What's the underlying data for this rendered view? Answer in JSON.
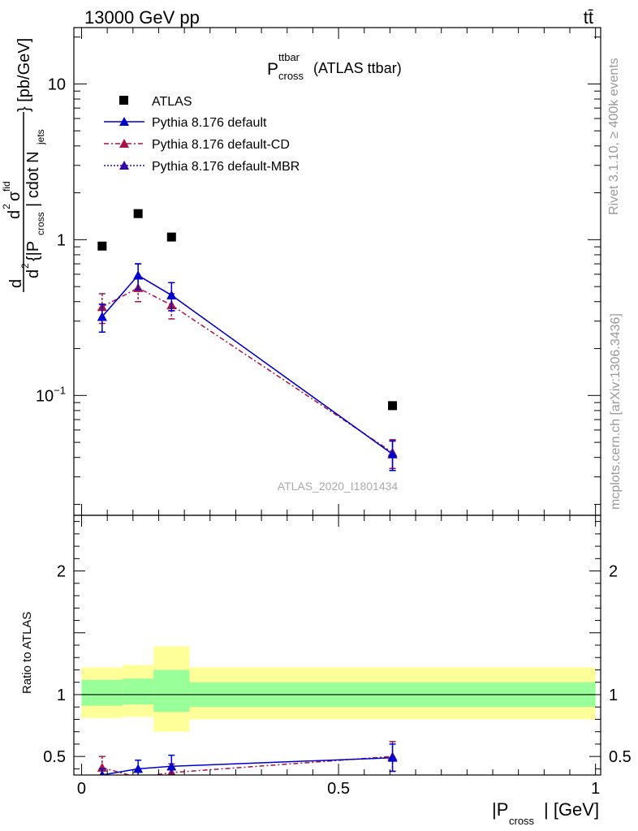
{
  "header": {
    "energy": "13000 GeV pp",
    "process": "tt̄"
  },
  "title": {
    "main": "P",
    "sup": "ttbar",
    "sub": "cross",
    "suffix": "(ATLAS ttbar)"
  },
  "side": {
    "rivet": "Rivet 3.1.10, ≥ 400k events",
    "mcplots": "mcplots.cern.ch [arXiv:1306.3436]"
  },
  "watermark": "ATLAS_2020_I1801434",
  "legend": {
    "placement": "top-left",
    "entries": [
      "ATLAS",
      "Pythia 8.176 default",
      "Pythia 8.176 default-CD",
      "Pythia 8.176 default-MBR"
    ]
  },
  "colors": {
    "data": "#000000",
    "default": "#0000cc",
    "cd": "#aa1144",
    "mbr": "#3300aa",
    "band_inner": "#99ff99",
    "band_outer": "#ffff99"
  },
  "chart_data": {
    "type": "scatter",
    "main": {
      "ylabel": {
        "prefix": "d",
        "num": "d",
        "num_sup": "2",
        "sigma_sup": "fid",
        "den_pre": "d",
        "den_sup": "2",
        "den_mid": "{|P",
        "den_sub": "cross",
        "den_post": "| cdot N",
        "den_sub2": "jets",
        "suffix": "} [pb/GeV]"
      },
      "yscale": "log",
      "ylim": [
        0.017,
        23
      ],
      "yticks": [
        {
          "value": 0.1,
          "base": "10",
          "exp": "−1"
        },
        {
          "value": 1,
          "base": "1",
          "exp": ""
        },
        {
          "value": 10,
          "base": "10",
          "exp": ""
        }
      ],
      "series": [
        {
          "name": "ATLAS",
          "x": [
            0.04,
            0.11,
            0.175,
            0.605
          ],
          "y": [
            0.91,
            1.47,
            1.04,
            0.086
          ]
        },
        {
          "name": "Pythia 8.176 default",
          "x": [
            0.04,
            0.11,
            0.175,
            0.605
          ],
          "y": [
            0.32,
            0.59,
            0.44,
            0.042
          ],
          "err": [
            0.065,
            0.11,
            0.09,
            0.009
          ]
        },
        {
          "name": "Pythia 8.176 default-CD",
          "x": [
            0.04,
            0.11,
            0.175,
            0.605
          ],
          "y": [
            0.37,
            0.49,
            0.38,
            0.043
          ],
          "err": [
            0.08,
            0.09,
            0.07,
            0.009
          ]
        },
        {
          "name": "Pythia 8.176 default-MBR",
          "x": [
            0.04,
            0.11,
            0.175,
            0.605
          ],
          "y": [
            0.32,
            0.59,
            0.44,
            0.042
          ],
          "err": [
            0.065,
            0.11,
            0.09,
            0.009
          ]
        }
      ]
    },
    "ratio": {
      "ylabel": "Ratio to ATLAS",
      "ylim": [
        0.35,
        2.45
      ],
      "yticks": [
        {
          "value": 0.5,
          "label": "0.5"
        },
        {
          "value": 1,
          "label": "1"
        },
        {
          "value": 2,
          "label": "2"
        }
      ],
      "bands": [
        {
          "x0": 0.0,
          "x1": 0.08,
          "inner": [
            0.91,
            1.12
          ],
          "outer": [
            0.81,
            1.22
          ]
        },
        {
          "x0": 0.08,
          "x1": 0.14,
          "inner": [
            0.92,
            1.13
          ],
          "outer": [
            0.82,
            1.24
          ]
        },
        {
          "x0": 0.14,
          "x1": 0.21,
          "inner": [
            0.86,
            1.2
          ],
          "outer": [
            0.7,
            1.39
          ]
        },
        {
          "x0": 0.21,
          "x1": 1.0,
          "inner": [
            0.9,
            1.1
          ],
          "outer": [
            0.8,
            1.22
          ]
        }
      ],
      "series": [
        {
          "name": "Pythia 8.176 default",
          "x": [
            0.04,
            0.11,
            0.175,
            0.605
          ],
          "y": [
            0.35,
            0.4,
            0.42,
            0.49
          ],
          "err": [
            0.05,
            0.07,
            0.09,
            0.11
          ]
        },
        {
          "name": "Pythia 8.176 default-CD",
          "x": [
            0.04,
            0.11,
            0.175,
            0.605
          ],
          "y": [
            0.41,
            0.33,
            0.37,
            0.5
          ],
          "err": [
            0.09,
            0.06,
            0.07,
            0.12
          ]
        }
      ]
    },
    "x": {
      "label_pre": "|P",
      "label_sub": "cross",
      "label_post": "| [GeV]",
      "xlim": [
        -0.015,
        1.01
      ],
      "xticks": [
        {
          "value": 0,
          "label": "0"
        },
        {
          "value": 0.5,
          "label": "0.5"
        },
        {
          "value": 1,
          "label": "1"
        }
      ]
    }
  }
}
